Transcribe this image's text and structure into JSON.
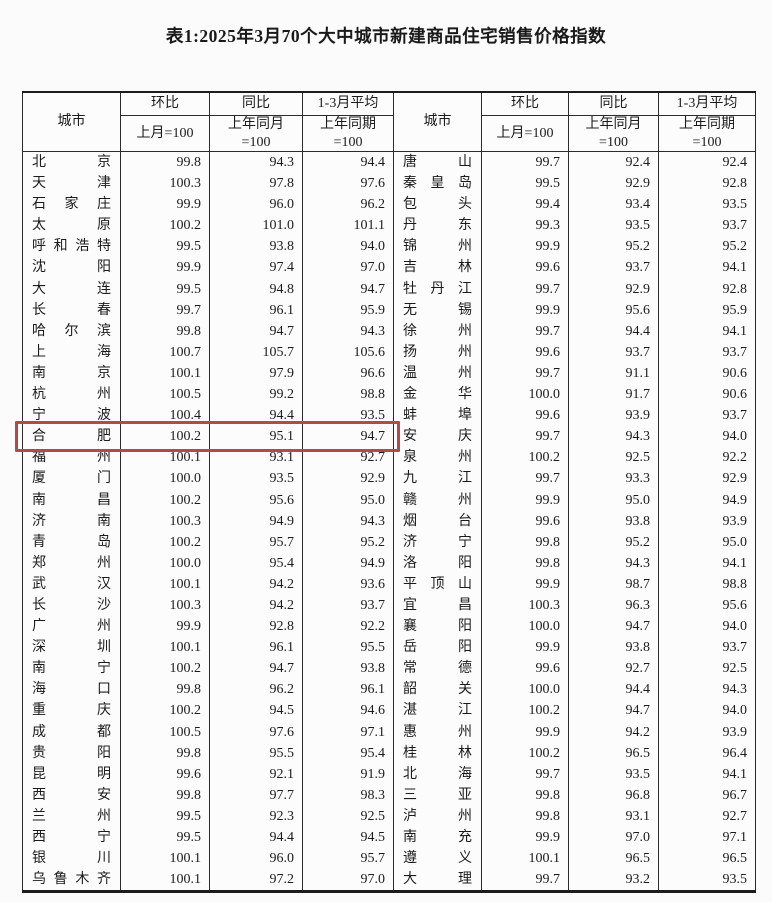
{
  "title": "表1:2025年3月70个大中城市新建商品住宅销售价格指数",
  "headers": {
    "city": "城市",
    "mom": {
      "title": "环比",
      "sub1": "上月=100",
      "sub2": ""
    },
    "yoy": {
      "title": "同比",
      "sub1": "上年同月",
      "sub2": "=100"
    },
    "avg": {
      "title": "1-3月平均",
      "sub1": "上年同期",
      "sub2": "=100"
    }
  },
  "highlight": {
    "city": "合肥",
    "color": "#b24a46"
  },
  "left_rows": [
    {
      "city": "北京",
      "mom": "99.8",
      "yoy": "94.3",
      "avg": "94.4"
    },
    {
      "city": "天津",
      "mom": "100.3",
      "yoy": "97.8",
      "avg": "97.6"
    },
    {
      "city": "石家庄",
      "mom": "99.9",
      "yoy": "96.0",
      "avg": "96.2"
    },
    {
      "city": "太原",
      "mom": "100.2",
      "yoy": "101.0",
      "avg": "101.1"
    },
    {
      "city": "呼和浩特",
      "mom": "99.5",
      "yoy": "93.8",
      "avg": "94.0"
    },
    {
      "city": "沈阳",
      "mom": "99.9",
      "yoy": "97.4",
      "avg": "97.0"
    },
    {
      "city": "大连",
      "mom": "99.5",
      "yoy": "94.8",
      "avg": "94.7"
    },
    {
      "city": "长春",
      "mom": "99.7",
      "yoy": "96.1",
      "avg": "95.9"
    },
    {
      "city": "哈尔滨",
      "mom": "99.8",
      "yoy": "94.7",
      "avg": "94.3"
    },
    {
      "city": "上海",
      "mom": "100.7",
      "yoy": "105.7",
      "avg": "105.6"
    },
    {
      "city": "南京",
      "mom": "100.1",
      "yoy": "97.9",
      "avg": "96.6"
    },
    {
      "city": "杭州",
      "mom": "100.5",
      "yoy": "99.2",
      "avg": "98.8"
    },
    {
      "city": "宁波",
      "mom": "100.4",
      "yoy": "94.4",
      "avg": "93.5"
    },
    {
      "city": "合肥",
      "mom": "100.2",
      "yoy": "95.1",
      "avg": "94.7"
    },
    {
      "city": "福州",
      "mom": "100.1",
      "yoy": "93.1",
      "avg": "92.7"
    },
    {
      "city": "厦门",
      "mom": "100.0",
      "yoy": "93.5",
      "avg": "92.9"
    },
    {
      "city": "南昌",
      "mom": "100.2",
      "yoy": "95.6",
      "avg": "95.0"
    },
    {
      "city": "济南",
      "mom": "100.3",
      "yoy": "94.9",
      "avg": "94.3"
    },
    {
      "city": "青岛",
      "mom": "100.2",
      "yoy": "95.7",
      "avg": "95.2"
    },
    {
      "city": "郑州",
      "mom": "100.0",
      "yoy": "95.4",
      "avg": "94.9"
    },
    {
      "city": "武汉",
      "mom": "100.1",
      "yoy": "94.2",
      "avg": "93.6"
    },
    {
      "city": "长沙",
      "mom": "100.3",
      "yoy": "94.2",
      "avg": "93.7"
    },
    {
      "city": "广州",
      "mom": "99.9",
      "yoy": "92.8",
      "avg": "92.2"
    },
    {
      "city": "深圳",
      "mom": "100.1",
      "yoy": "96.1",
      "avg": "95.5"
    },
    {
      "city": "南宁",
      "mom": "100.2",
      "yoy": "94.7",
      "avg": "93.8"
    },
    {
      "city": "海口",
      "mom": "99.8",
      "yoy": "96.2",
      "avg": "96.1"
    },
    {
      "city": "重庆",
      "mom": "100.2",
      "yoy": "94.5",
      "avg": "94.6"
    },
    {
      "city": "成都",
      "mom": "100.5",
      "yoy": "97.6",
      "avg": "97.1"
    },
    {
      "city": "贵阳",
      "mom": "99.8",
      "yoy": "95.5",
      "avg": "95.4"
    },
    {
      "city": "昆明",
      "mom": "99.6",
      "yoy": "92.1",
      "avg": "91.9"
    },
    {
      "city": "西安",
      "mom": "99.8",
      "yoy": "97.7",
      "avg": "98.3"
    },
    {
      "city": "兰州",
      "mom": "99.5",
      "yoy": "92.3",
      "avg": "92.5"
    },
    {
      "city": "西宁",
      "mom": "99.5",
      "yoy": "94.4",
      "avg": "94.5"
    },
    {
      "city": "银川",
      "mom": "100.1",
      "yoy": "96.0",
      "avg": "95.7"
    },
    {
      "city": "乌鲁木齐",
      "mom": "100.1",
      "yoy": "97.2",
      "avg": "97.0"
    }
  ],
  "right_rows": [
    {
      "city": "唐山",
      "mom": "99.7",
      "yoy": "92.4",
      "avg": "92.4"
    },
    {
      "city": "秦皇岛",
      "mom": "99.5",
      "yoy": "92.9",
      "avg": "92.8"
    },
    {
      "city": "包头",
      "mom": "99.4",
      "yoy": "93.4",
      "avg": "93.5"
    },
    {
      "city": "丹东",
      "mom": "99.3",
      "yoy": "93.5",
      "avg": "93.7"
    },
    {
      "city": "锦州",
      "mom": "99.9",
      "yoy": "95.2",
      "avg": "95.2"
    },
    {
      "city": "吉林",
      "mom": "99.6",
      "yoy": "93.7",
      "avg": "94.1"
    },
    {
      "city": "牡丹江",
      "mom": "99.7",
      "yoy": "92.9",
      "avg": "92.8"
    },
    {
      "city": "无锡",
      "mom": "99.9",
      "yoy": "95.6",
      "avg": "95.9"
    },
    {
      "city": "徐州",
      "mom": "99.7",
      "yoy": "94.4",
      "avg": "94.1"
    },
    {
      "city": "扬州",
      "mom": "99.6",
      "yoy": "93.7",
      "avg": "93.7"
    },
    {
      "city": "温州",
      "mom": "99.7",
      "yoy": "91.1",
      "avg": "90.6"
    },
    {
      "city": "金华",
      "mom": "100.0",
      "yoy": "91.7",
      "avg": "90.6"
    },
    {
      "city": "蚌埠",
      "mom": "99.6",
      "yoy": "93.9",
      "avg": "93.7"
    },
    {
      "city": "安庆",
      "mom": "99.7",
      "yoy": "94.3",
      "avg": "94.0"
    },
    {
      "city": "泉州",
      "mom": "100.2",
      "yoy": "92.5",
      "avg": "92.2"
    },
    {
      "city": "九江",
      "mom": "99.7",
      "yoy": "93.3",
      "avg": "92.9"
    },
    {
      "city": "赣州",
      "mom": "99.9",
      "yoy": "95.0",
      "avg": "94.9"
    },
    {
      "city": "烟台",
      "mom": "99.6",
      "yoy": "93.8",
      "avg": "93.9"
    },
    {
      "city": "济宁",
      "mom": "99.8",
      "yoy": "95.2",
      "avg": "95.0"
    },
    {
      "city": "洛阳",
      "mom": "99.8",
      "yoy": "94.3",
      "avg": "94.1"
    },
    {
      "city": "平顶山",
      "mom": "99.9",
      "yoy": "98.7",
      "avg": "98.8"
    },
    {
      "city": "宜昌",
      "mom": "100.3",
      "yoy": "96.3",
      "avg": "95.6"
    },
    {
      "city": "襄阳",
      "mom": "100.0",
      "yoy": "94.7",
      "avg": "94.0"
    },
    {
      "city": "岳阳",
      "mom": "99.9",
      "yoy": "93.8",
      "avg": "93.7"
    },
    {
      "city": "常德",
      "mom": "99.6",
      "yoy": "92.7",
      "avg": "92.5"
    },
    {
      "city": "韶关",
      "mom": "100.0",
      "yoy": "94.4",
      "avg": "94.3"
    },
    {
      "city": "湛江",
      "mom": "100.2",
      "yoy": "94.7",
      "avg": "94.0"
    },
    {
      "city": "惠州",
      "mom": "99.9",
      "yoy": "94.2",
      "avg": "93.9"
    },
    {
      "city": "桂林",
      "mom": "100.2",
      "yoy": "96.5",
      "avg": "96.4"
    },
    {
      "city": "北海",
      "mom": "99.7",
      "yoy": "93.5",
      "avg": "94.1"
    },
    {
      "city": "三亚",
      "mom": "99.8",
      "yoy": "96.8",
      "avg": "96.7"
    },
    {
      "city": "泸州",
      "mom": "99.8",
      "yoy": "93.1",
      "avg": "92.7"
    },
    {
      "city": "南充",
      "mom": "99.9",
      "yoy": "97.0",
      "avg": "97.1"
    },
    {
      "city": "遵义",
      "mom": "100.1",
      "yoy": "96.5",
      "avg": "96.5"
    },
    {
      "city": "大理",
      "mom": "99.7",
      "yoy": "93.2",
      "avg": "93.5"
    }
  ]
}
